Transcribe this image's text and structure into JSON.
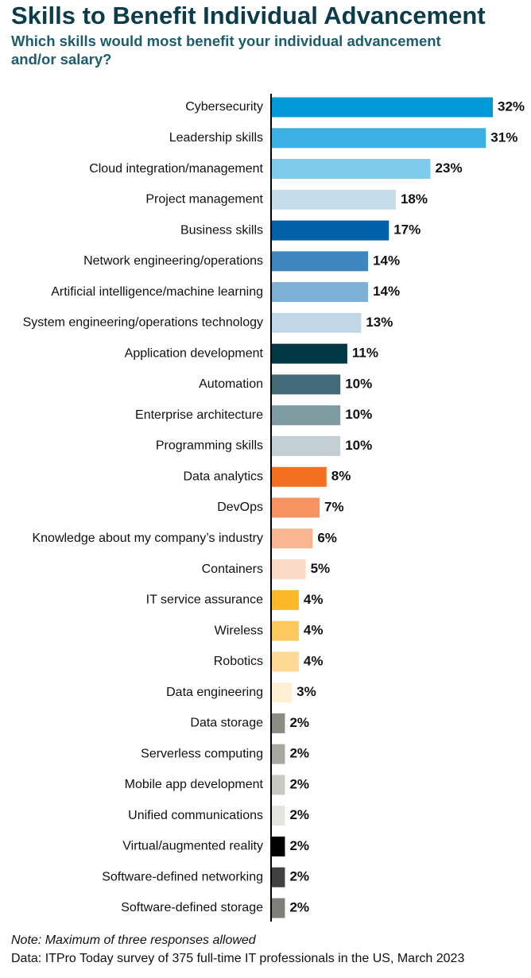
{
  "chart_data": {
    "type": "bar",
    "orientation": "horizontal",
    "title": "Skills to Benefit Individual Advancement",
    "subtitle": "Which skills would most benefit your individual advancement and/or salary?",
    "categories": [
      "Cybersecurity",
      "Leadership skills",
      "Cloud integration/management",
      "Project management",
      "Business skills",
      "Network engineering/operations",
      "Artificial intelligence/machine learning",
      "System engineering/operations technology",
      "Application development",
      "Automation",
      "Enterprise architecture",
      "Programming skills",
      "Data analytics",
      "DevOps",
      "Knowledge about my company’s industry",
      "Containers",
      "IT service assurance",
      "Wireless",
      "Robotics",
      "Data engineering",
      "Data storage",
      "Serverless computing",
      "Mobile app development",
      "Unified communications",
      "Virtual/augmented reality",
      "Software-defined networking",
      "Software-defined storage"
    ],
    "values": [
      32,
      31,
      23,
      18,
      17,
      14,
      14,
      13,
      11,
      10,
      10,
      10,
      8,
      7,
      6,
      5,
      4,
      4,
      4,
      3,
      2,
      2,
      2,
      2,
      2,
      2,
      2
    ],
    "value_labels": [
      "32%",
      "31%",
      "23%",
      "18%",
      "17%",
      "14%",
      "14%",
      "13%",
      "11%",
      "10%",
      "10%",
      "10%",
      "8%",
      "7%",
      "6%",
      "5%",
      "4%",
      "4%",
      "4%",
      "3%",
      "2%",
      "2%",
      "2%",
      "2%",
      "2%",
      "2%",
      "2%"
    ],
    "colors": [
      "#0099d8",
      "#3cb0e3",
      "#80cbeb",
      "#c5dcea",
      "#0060a8",
      "#3f86bf",
      "#7cb0d4",
      "#c1d7e8",
      "#003846",
      "#426a78",
      "#7f9ba2",
      "#c2cfd4",
      "#f37021",
      "#f69360",
      "#f9b690",
      "#fcdac8",
      "#fbb829",
      "#fcc95f",
      "#fdd995",
      "#fef0d2",
      "#8d8b85",
      "#a9a7a2",
      "#c8c7c3",
      "#e5e4e1",
      "#000000",
      "#414042",
      "#807e7b"
    ],
    "note": "Note: Maximum of three responses allowed",
    "source": "Data: ITPro Today survey of 375 full-time IT professionals in the US, March 2023"
  }
}
